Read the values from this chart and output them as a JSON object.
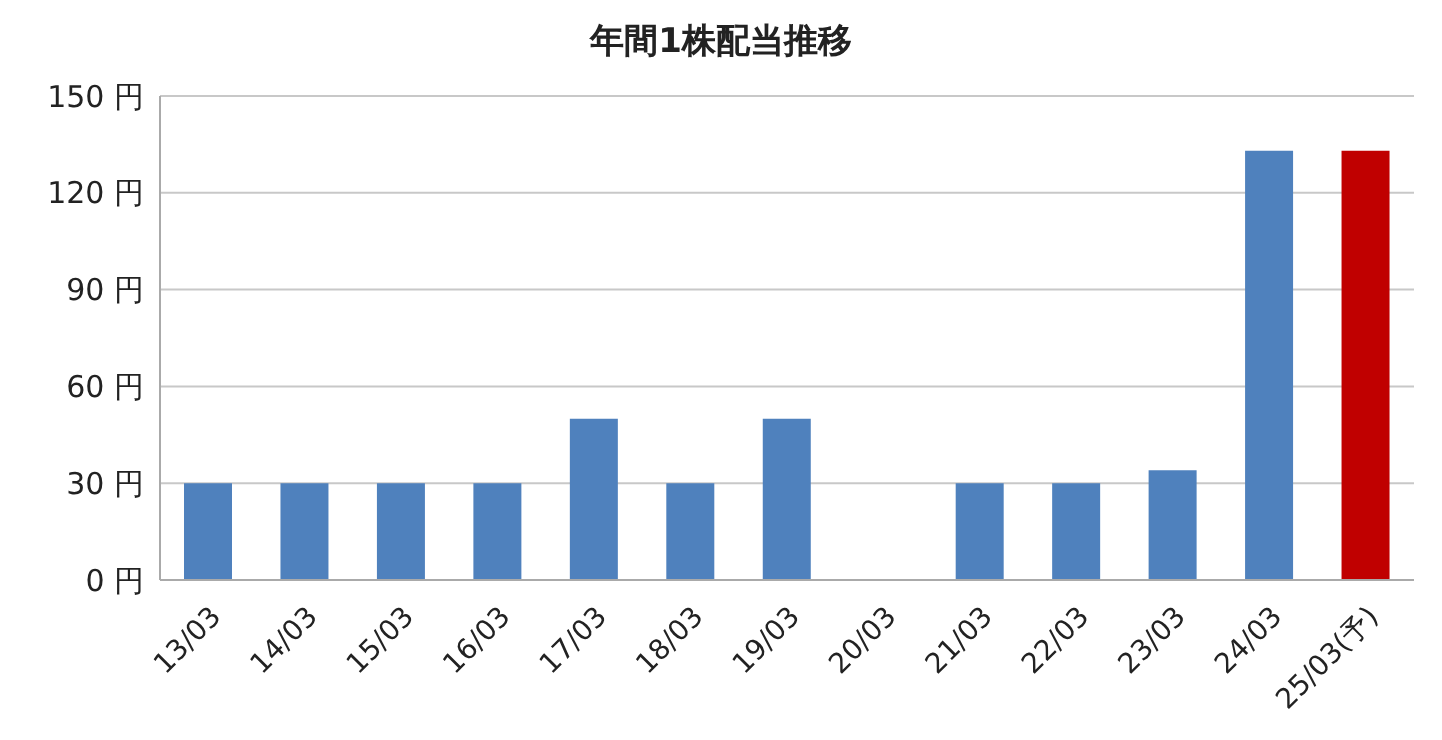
{
  "chart_data": {
    "type": "bar",
    "title": "年間1株配当推移",
    "categories": [
      "13/03",
      "14/03",
      "15/03",
      "16/03",
      "17/03",
      "18/03",
      "19/03",
      "20/03",
      "21/03",
      "22/03",
      "23/03",
      "24/03",
      "25/03(予)"
    ],
    "values": [
      30,
      30,
      30,
      30,
      50,
      30,
      50,
      0,
      30,
      30,
      34,
      133,
      133
    ],
    "colors": [
      "#4f81bd",
      "#4f81bd",
      "#4f81bd",
      "#4f81bd",
      "#4f81bd",
      "#4f81bd",
      "#4f81bd",
      "#4f81bd",
      "#4f81bd",
      "#4f81bd",
      "#4f81bd",
      "#4f81bd",
      "#c00000"
    ],
    "ylim": [
      0,
      150
    ],
    "yticks": [
      {
        "value": 0,
        "label": "0 円"
      },
      {
        "value": 30,
        "label": "30 円"
      },
      {
        "value": 60,
        "label": "60 円"
      },
      {
        "value": 90,
        "label": "90 円"
      },
      {
        "value": 120,
        "label": "120 円"
      },
      {
        "value": 150,
        "label": "150 円"
      }
    ],
    "grid": "y",
    "legend": false
  }
}
